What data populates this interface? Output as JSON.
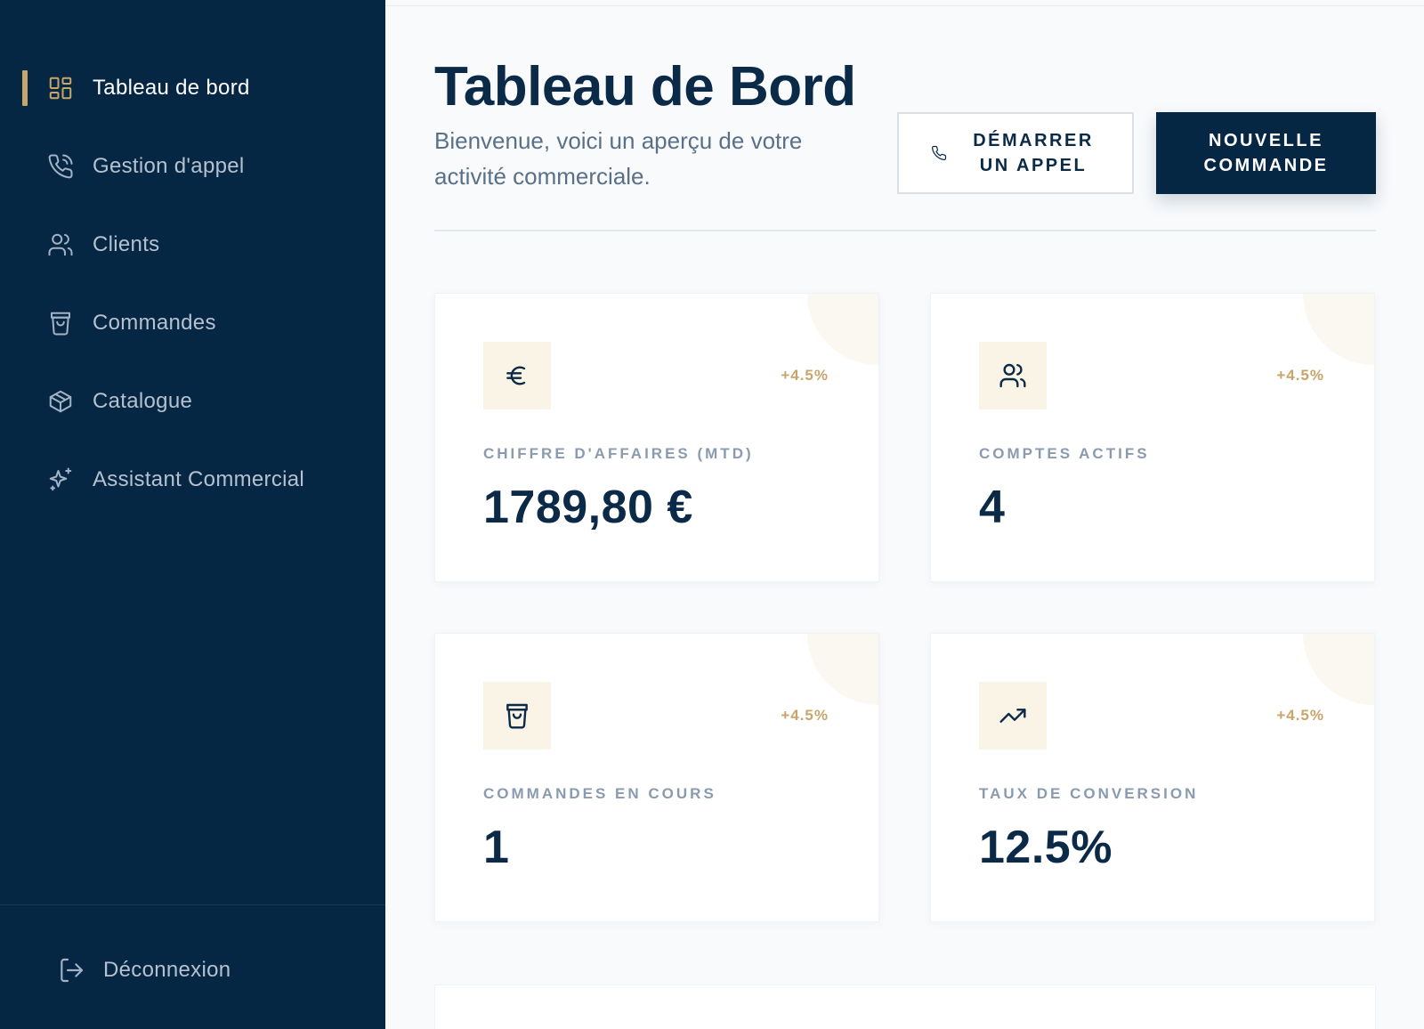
{
  "sidebar": {
    "items": [
      {
        "label": "Tableau de bord",
        "icon": "dashboard-icon",
        "active": true
      },
      {
        "label": "Gestion d'appel",
        "icon": "phone-icon",
        "active": false
      },
      {
        "label": "Clients",
        "icon": "users-icon",
        "active": false
      },
      {
        "label": "Commandes",
        "icon": "shopping-bag-icon",
        "active": false
      },
      {
        "label": "Catalogue",
        "icon": "package-icon",
        "active": false
      },
      {
        "label": "Assistant Commercial",
        "icon": "sparkles-icon",
        "active": false
      }
    ],
    "logout_label": "Déconnexion"
  },
  "header": {
    "title": "Tableau de Bord",
    "subtitle": "Bienvenue, voici un aperçu de votre activité commerciale.",
    "call_button": "DÉMARRER UN APPEL",
    "order_button": "NOUVELLE COMMANDE"
  },
  "stats": [
    {
      "icon": "euro-icon",
      "trend": "+4.5%",
      "label": "CHIFFRE D'AFFAIRES (MTD)",
      "value": "1789,80 €"
    },
    {
      "icon": "users-icon",
      "trend": "+4.5%",
      "label": "COMPTES ACTIFS",
      "value": "4"
    },
    {
      "icon": "shopping-bag-icon",
      "trend": "+4.5%",
      "label": "COMMANDES EN COURS",
      "value": "1"
    },
    {
      "icon": "trending-up-icon",
      "trend": "+4.5%",
      "label": "TAUX DE CONVERSION",
      "value": "12.5%"
    }
  ],
  "colors": {
    "sidebar_bg": "#062744",
    "accent_gold": "#c8a56a",
    "primary_navy": "#0b2a47",
    "page_bg": "#f8fafc"
  }
}
